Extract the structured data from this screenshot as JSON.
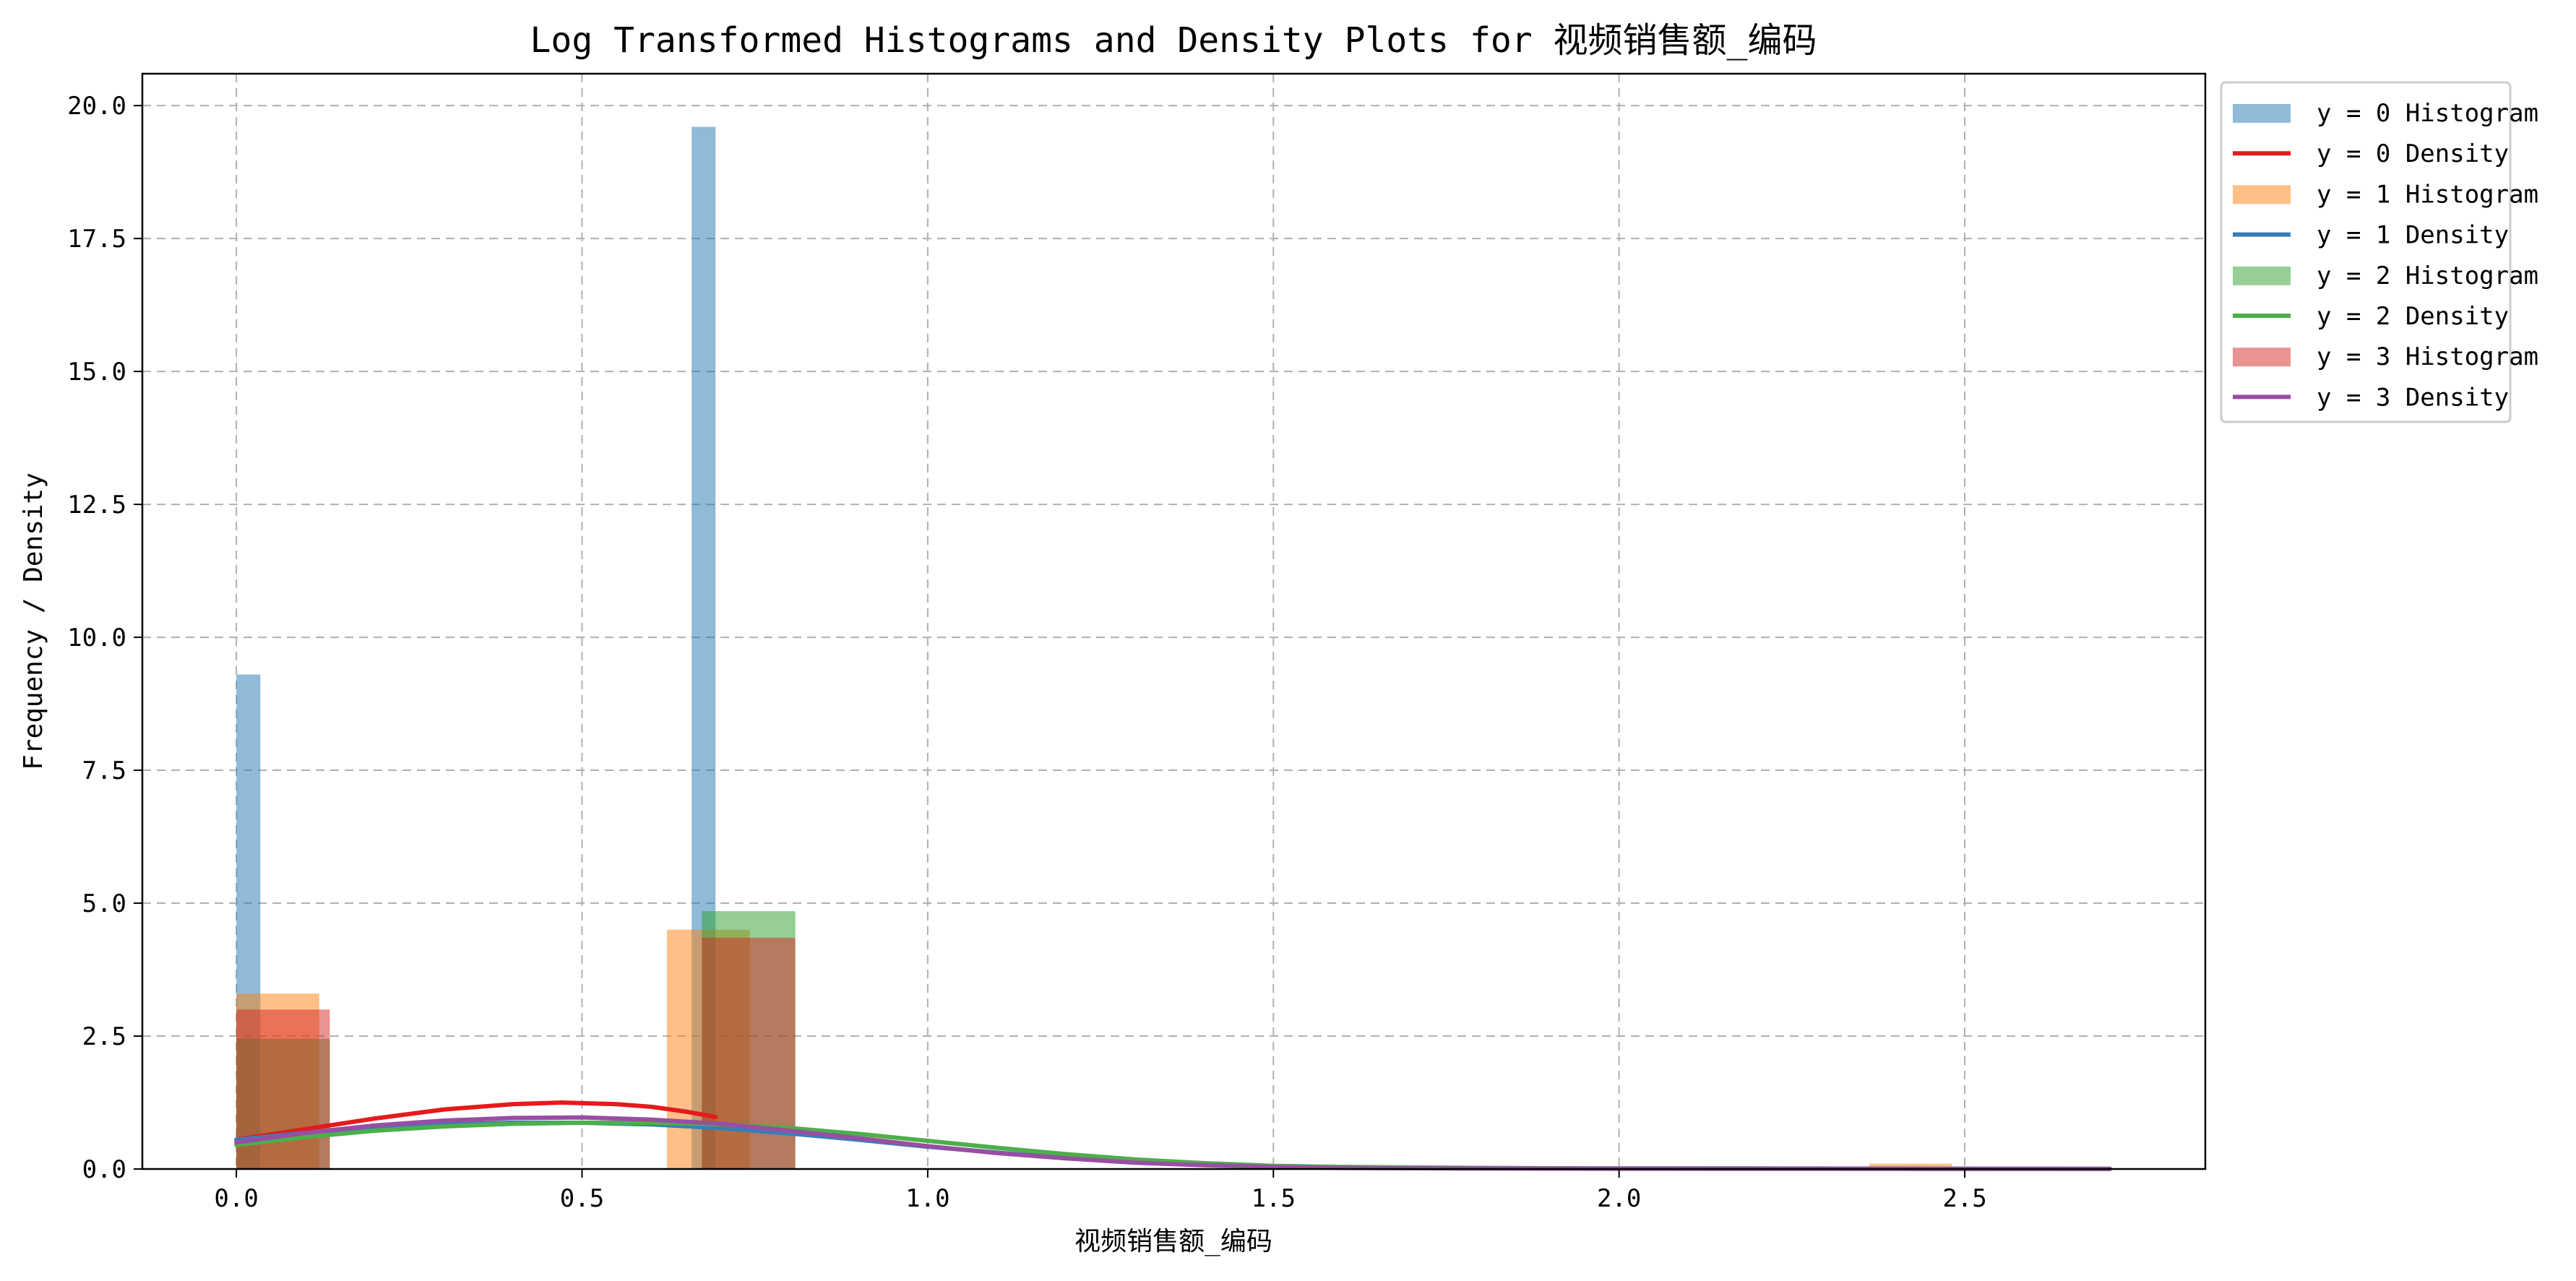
{
  "chart_data": {
    "type": "bar",
    "title": "Log Transformed Histograms and Density Plots for 视频销售额_编码",
    "xlabel": "视频销售额_编码",
    "ylabel": "Frequency / Density",
    "xlim": [
      -0.136,
      2.848
    ],
    "ylim": [
      0,
      20.6
    ],
    "xticks": [
      0.0,
      0.5,
      1.0,
      1.5,
      2.0,
      2.5
    ],
    "xtick_labels": [
      "0.0",
      "0.5",
      "1.0",
      "1.5",
      "2.0",
      "2.5"
    ],
    "yticks": [
      0.0,
      2.5,
      5.0,
      7.5,
      10.0,
      12.5,
      15.0,
      17.5,
      20.0
    ],
    "ytick_labels": [
      "0.0",
      "2.5",
      "5.0",
      "7.5",
      "10.0",
      "12.5",
      "15.0",
      "17.5",
      "20.0"
    ],
    "grid": true,
    "legend_position": "outside top-right",
    "histograms": [
      {
        "name": "y = 0 Histogram",
        "color": "#1f77b4",
        "opacity": 0.5,
        "bins": [
          {
            "x0": 0.0,
            "x1": 0.0347,
            "value": 9.3
          },
          {
            "x0": 0.6585,
            "x1": 0.6931,
            "value": 19.6
          }
        ]
      },
      {
        "name": "y = 1 Histogram",
        "color": "#ff7f0e",
        "opacity": 0.5,
        "bins": [
          {
            "x0": 0.0,
            "x1": 0.1199,
            "value": 3.3
          },
          {
            "x0": 0.6228,
            "x1": 0.7427,
            "value": 4.5
          },
          {
            "x0": 2.3617,
            "x1": 2.4816,
            "value": 0.1
          }
        ]
      },
      {
        "name": "y = 2 Histogram",
        "color": "#2ca02c",
        "opacity": 0.5,
        "bins": [
          {
            "x0": 0.0,
            "x1": 0.1352,
            "value": 2.45
          },
          {
            "x0": 0.6733,
            "x1": 0.8085,
            "value": 4.85
          }
        ]
      },
      {
        "name": "y = 3 Histogram",
        "color": "#d62728",
        "opacity": 0.5,
        "bins": [
          {
            "x0": 0.0,
            "x1": 0.1352,
            "value": 3.0
          },
          {
            "x0": 0.6733,
            "x1": 0.8085,
            "value": 4.35
          }
        ]
      }
    ],
    "densities": [
      {
        "name": "y = 0 Density",
        "color": "#e41a1c",
        "points": [
          [
            0.0,
            0.55
          ],
          [
            0.1,
            0.75
          ],
          [
            0.2,
            0.95
          ],
          [
            0.3,
            1.12
          ],
          [
            0.4,
            1.22
          ],
          [
            0.47,
            1.25
          ],
          [
            0.55,
            1.22
          ],
          [
            0.6,
            1.17
          ],
          [
            0.65,
            1.08
          ],
          [
            0.693,
            0.98
          ]
        ]
      },
      {
        "name": "y = 1 Density",
        "color": "#377eb8",
        "points": [
          [
            0.0,
            0.55
          ],
          [
            0.1,
            0.68
          ],
          [
            0.2,
            0.78
          ],
          [
            0.3,
            0.84
          ],
          [
            0.4,
            0.87
          ],
          [
            0.5,
            0.87
          ],
          [
            0.6,
            0.84
          ],
          [
            0.7,
            0.77
          ],
          [
            0.8,
            0.67
          ],
          [
            0.9,
            0.55
          ],
          [
            1.0,
            0.42
          ],
          [
            1.1,
            0.31
          ],
          [
            1.2,
            0.21
          ],
          [
            1.3,
            0.13
          ],
          [
            1.4,
            0.08
          ],
          [
            1.5,
            0.05
          ],
          [
            1.6,
            0.03
          ],
          [
            1.8,
            0.015
          ],
          [
            2.0,
            0.01
          ],
          [
            2.2,
            0.01
          ],
          [
            2.4,
            0.008
          ],
          [
            2.6,
            0.005
          ],
          [
            2.71,
            0.004
          ]
        ]
      },
      {
        "name": "y = 2 Density",
        "color": "#4daf4a",
        "points": [
          [
            0.0,
            0.45
          ],
          [
            0.1,
            0.6
          ],
          [
            0.2,
            0.72
          ],
          [
            0.3,
            0.8
          ],
          [
            0.4,
            0.85
          ],
          [
            0.5,
            0.87
          ],
          [
            0.6,
            0.87
          ],
          [
            0.7,
            0.84
          ],
          [
            0.8,
            0.77
          ],
          [
            0.9,
            0.66
          ],
          [
            1.0,
            0.53
          ],
          [
            1.1,
            0.4
          ],
          [
            1.2,
            0.28
          ],
          [
            1.3,
            0.18
          ],
          [
            1.4,
            0.11
          ],
          [
            1.5,
            0.06
          ],
          [
            1.6,
            0.04
          ],
          [
            1.8,
            0.02
          ],
          [
            2.0,
            0.01
          ],
          [
            2.4,
            0.005
          ],
          [
            2.71,
            0.003
          ]
        ]
      },
      {
        "name": "y = 3 Density",
        "color": "#984ea3",
        "points": [
          [
            0.0,
            0.5
          ],
          [
            0.1,
            0.68
          ],
          [
            0.2,
            0.82
          ],
          [
            0.3,
            0.91
          ],
          [
            0.4,
            0.96
          ],
          [
            0.5,
            0.97
          ],
          [
            0.6,
            0.93
          ],
          [
            0.7,
            0.85
          ],
          [
            0.8,
            0.72
          ],
          [
            0.9,
            0.58
          ],
          [
            1.0,
            0.43
          ],
          [
            1.1,
            0.3
          ],
          [
            1.2,
            0.2
          ],
          [
            1.3,
            0.12
          ],
          [
            1.4,
            0.07
          ],
          [
            1.5,
            0.04
          ],
          [
            1.6,
            0.02
          ],
          [
            1.8,
            0.01
          ],
          [
            2.0,
            0.005
          ],
          [
            2.4,
            0.003
          ],
          [
            2.71,
            0.002
          ]
        ]
      }
    ],
    "legend": [
      {
        "label": "y = 0 Histogram",
        "kind": "patch",
        "color": "#1f77b4"
      },
      {
        "label": "y = 0 Density",
        "kind": "line",
        "color": "#e41a1c"
      },
      {
        "label": "y = 1 Histogram",
        "kind": "patch",
        "color": "#ff7f0e"
      },
      {
        "label": "y = 1 Density",
        "kind": "line",
        "color": "#377eb8"
      },
      {
        "label": "y = 2 Histogram",
        "kind": "patch",
        "color": "#2ca02c"
      },
      {
        "label": "y = 2 Density",
        "kind": "line",
        "color": "#4daf4a"
      },
      {
        "label": "y = 3 Histogram",
        "kind": "patch",
        "color": "#d62728"
      },
      {
        "label": "y = 3 Density",
        "kind": "line",
        "color": "#984ea3"
      }
    ]
  }
}
